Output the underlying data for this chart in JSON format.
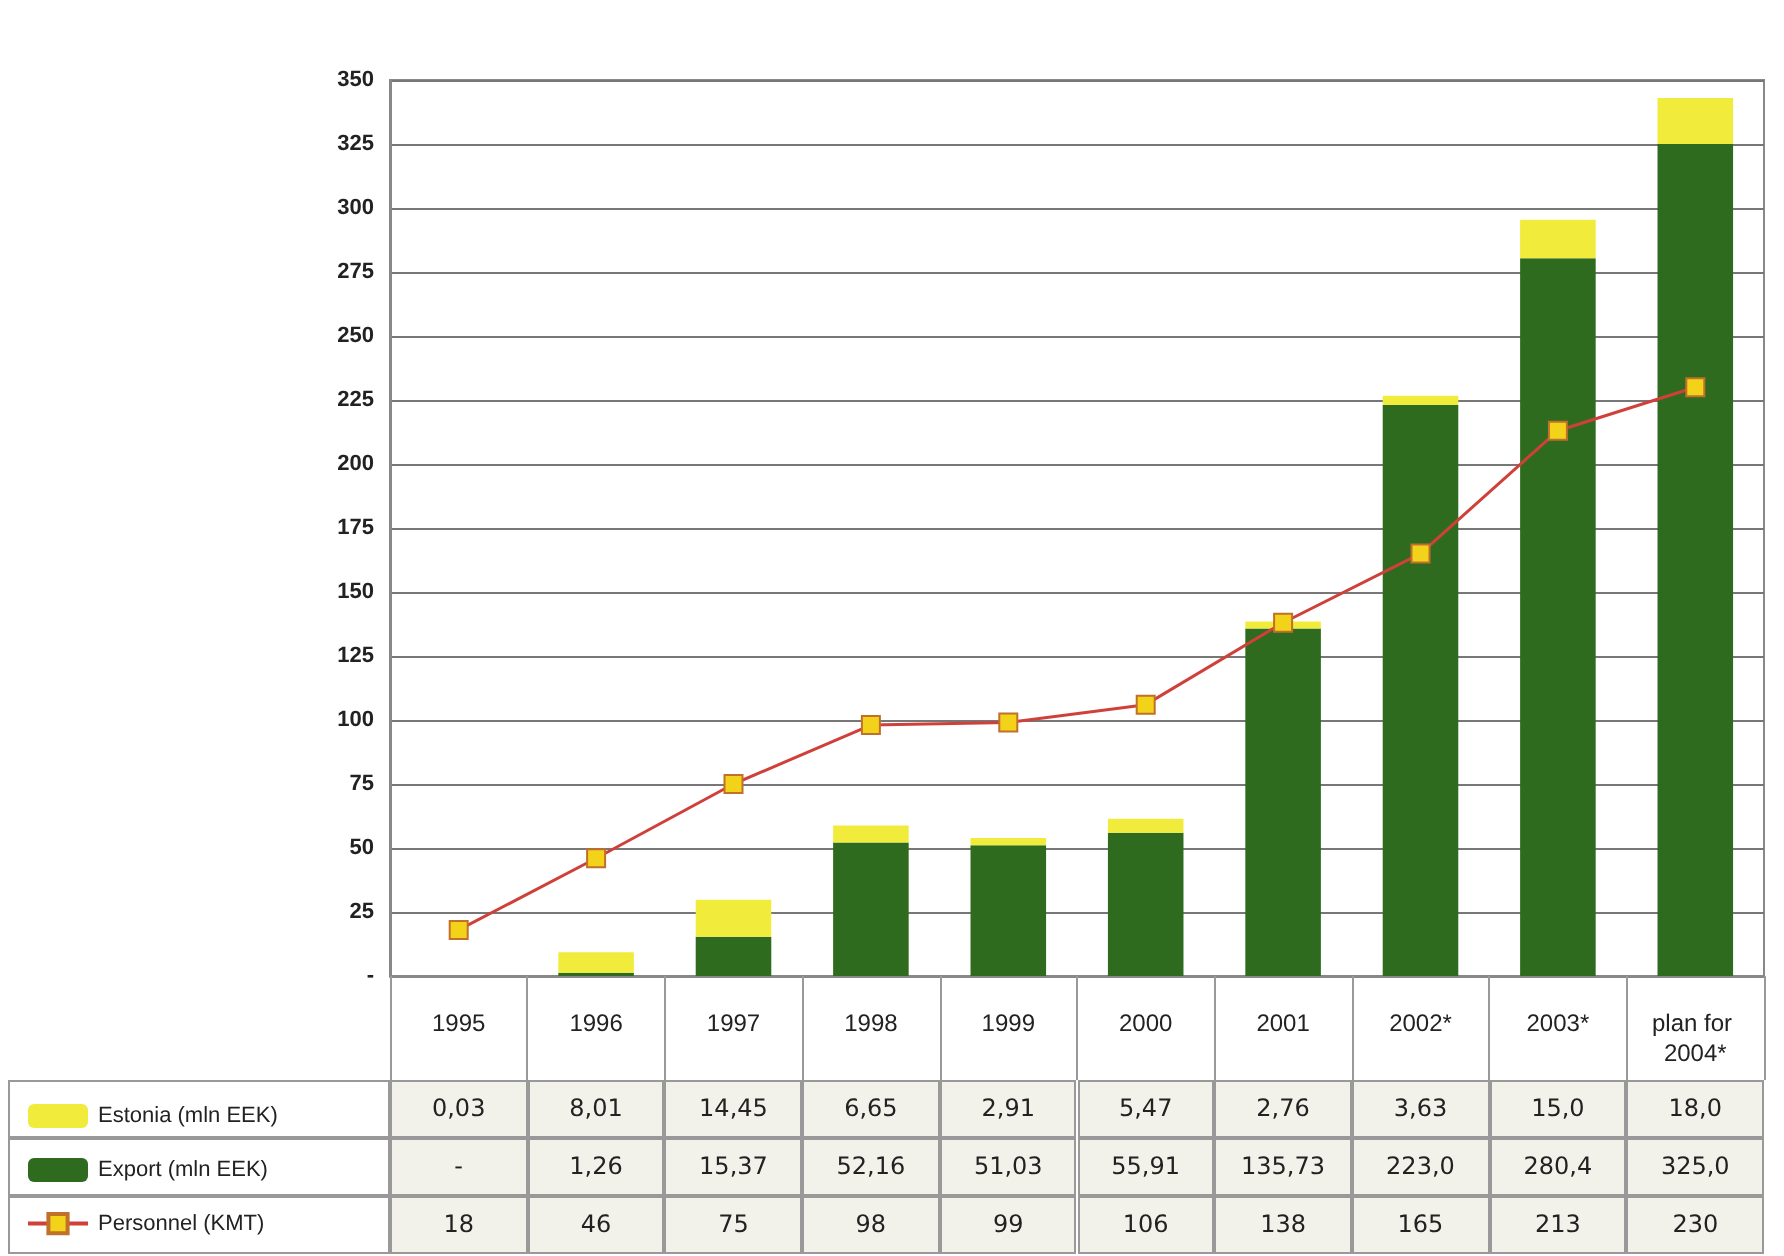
{
  "chart_data": {
    "type": "bar",
    "stacked": true,
    "categories": [
      "1995",
      "1996",
      "1997",
      "1998",
      "1999",
      "2000",
      "2001",
      "2002*",
      "2003*",
      "plan for 2004*"
    ],
    "series": [
      {
        "name": "Export (mln EEK)",
        "color": "#2f6b1f",
        "values": [
          null,
          1.26,
          15.37,
          52.16,
          51.03,
          55.91,
          135.73,
          223.0,
          280.4,
          325.0
        ],
        "value_labels": [
          "-",
          "1,26",
          "15,37",
          "52,16",
          "51,03",
          "55,91",
          "135,73",
          "223,0",
          "280,4",
          "325,0"
        ]
      },
      {
        "name": "Estonia (mln EEK)",
        "color": "#f1ec3c",
        "values": [
          0.03,
          8.01,
          14.45,
          6.65,
          2.91,
          5.47,
          2.76,
          3.63,
          15.0,
          18.0
        ],
        "value_labels": [
          "0,03",
          "8,01",
          "14,45",
          "6,65",
          "2,91",
          "5,47",
          "2,76",
          "3,63",
          "15,0",
          "18,0"
        ]
      },
      {
        "name": "Personnel (KMT)",
        "type": "line",
        "color": "#d0403a",
        "marker": "square",
        "values": [
          18,
          46,
          75,
          98,
          99,
          106,
          138,
          165,
          213,
          230
        ],
        "value_labels": [
          "18",
          "46",
          "75",
          "98",
          "99",
          "106",
          "138",
          "165",
          "213",
          "230"
        ]
      }
    ],
    "ylim": [
      0,
      350
    ],
    "yticks": [
      {
        "value": 0,
        "label": "-"
      },
      25,
      50,
      75,
      100,
      125,
      150,
      175,
      200,
      225,
      250,
      275,
      300,
      325,
      350
    ],
    "grid": "y",
    "legend": "bottom left"
  }
}
